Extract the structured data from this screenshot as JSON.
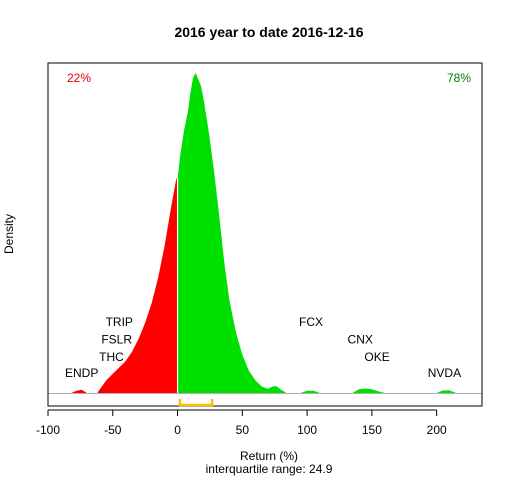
{
  "chart_data": {
    "type": "area",
    "title": "2016  year to date 2016-12-16",
    "xlabel": "Return (%)",
    "ylabel": "Density",
    "subtitle": "interquartile range: 24.9",
    "xlim": [
      -100,
      235
    ],
    "xticks": [
      -100,
      -50,
      0,
      50,
      100,
      150,
      200
    ],
    "ylim": [
      0,
      1
    ],
    "grid": false,
    "split_at": 0,
    "negative_share": "22%",
    "positive_share": "78%",
    "negative_color": "#ff0000",
    "positive_color": "#00e000",
    "negative_share_color": "#e00000",
    "positive_share_color": "#008000",
    "iqr_color": "#ffc000",
    "iqr": [
      1.8,
      26.7
    ],
    "density": {
      "x": [
        -82,
        -78,
        -74,
        -70,
        -62,
        -55,
        -50,
        -45,
        -40,
        -35,
        -30,
        -25,
        -20,
        -15,
        -10,
        -5,
        -1,
        0,
        2,
        5,
        8,
        10,
        12,
        14,
        15,
        16,
        18,
        20,
        24,
        28,
        32,
        36,
        40,
        45,
        50,
        55,
        60,
        65,
        70,
        73,
        76,
        80,
        84,
        95,
        100,
        105,
        110,
        135,
        140,
        145,
        150,
        155,
        160,
        200,
        205,
        210,
        215
      ],
      "y": [
        0,
        0.007,
        0.01,
        0,
        0,
        0.04,
        0.06,
        0.08,
        0.1,
        0.13,
        0.17,
        0.22,
        0.28,
        0.36,
        0.46,
        0.58,
        0.67,
        0.67,
        0.74,
        0.82,
        0.88,
        0.94,
        0.985,
        1.0,
        0.99,
        0.98,
        0.96,
        0.92,
        0.82,
        0.7,
        0.56,
        0.41,
        0.29,
        0.19,
        0.12,
        0.07,
        0.04,
        0.02,
        0.013,
        0.02,
        0.022,
        0.01,
        0,
        0,
        0.007,
        0.007,
        0,
        0,
        0.012,
        0.014,
        0.012,
        0.005,
        0,
        0,
        0.008,
        0.008,
        0
      ]
    },
    "annotations": [
      {
        "text": "TRIP",
        "x": -45,
        "y": 0.21
      },
      {
        "text": "FSLR",
        "x": -47,
        "y": 0.155
      },
      {
        "text": "THC",
        "x": -51,
        "y": 0.1
      },
      {
        "text": "ENDP",
        "x": -74,
        "y": 0.05
      },
      {
        "text": "FCX",
        "x": 103,
        "y": 0.21
      },
      {
        "text": "CNX",
        "x": 141,
        "y": 0.155
      },
      {
        "text": "OKE",
        "x": 154,
        "y": 0.1
      },
      {
        "text": "NVDA",
        "x": 206,
        "y": 0.05
      }
    ]
  }
}
